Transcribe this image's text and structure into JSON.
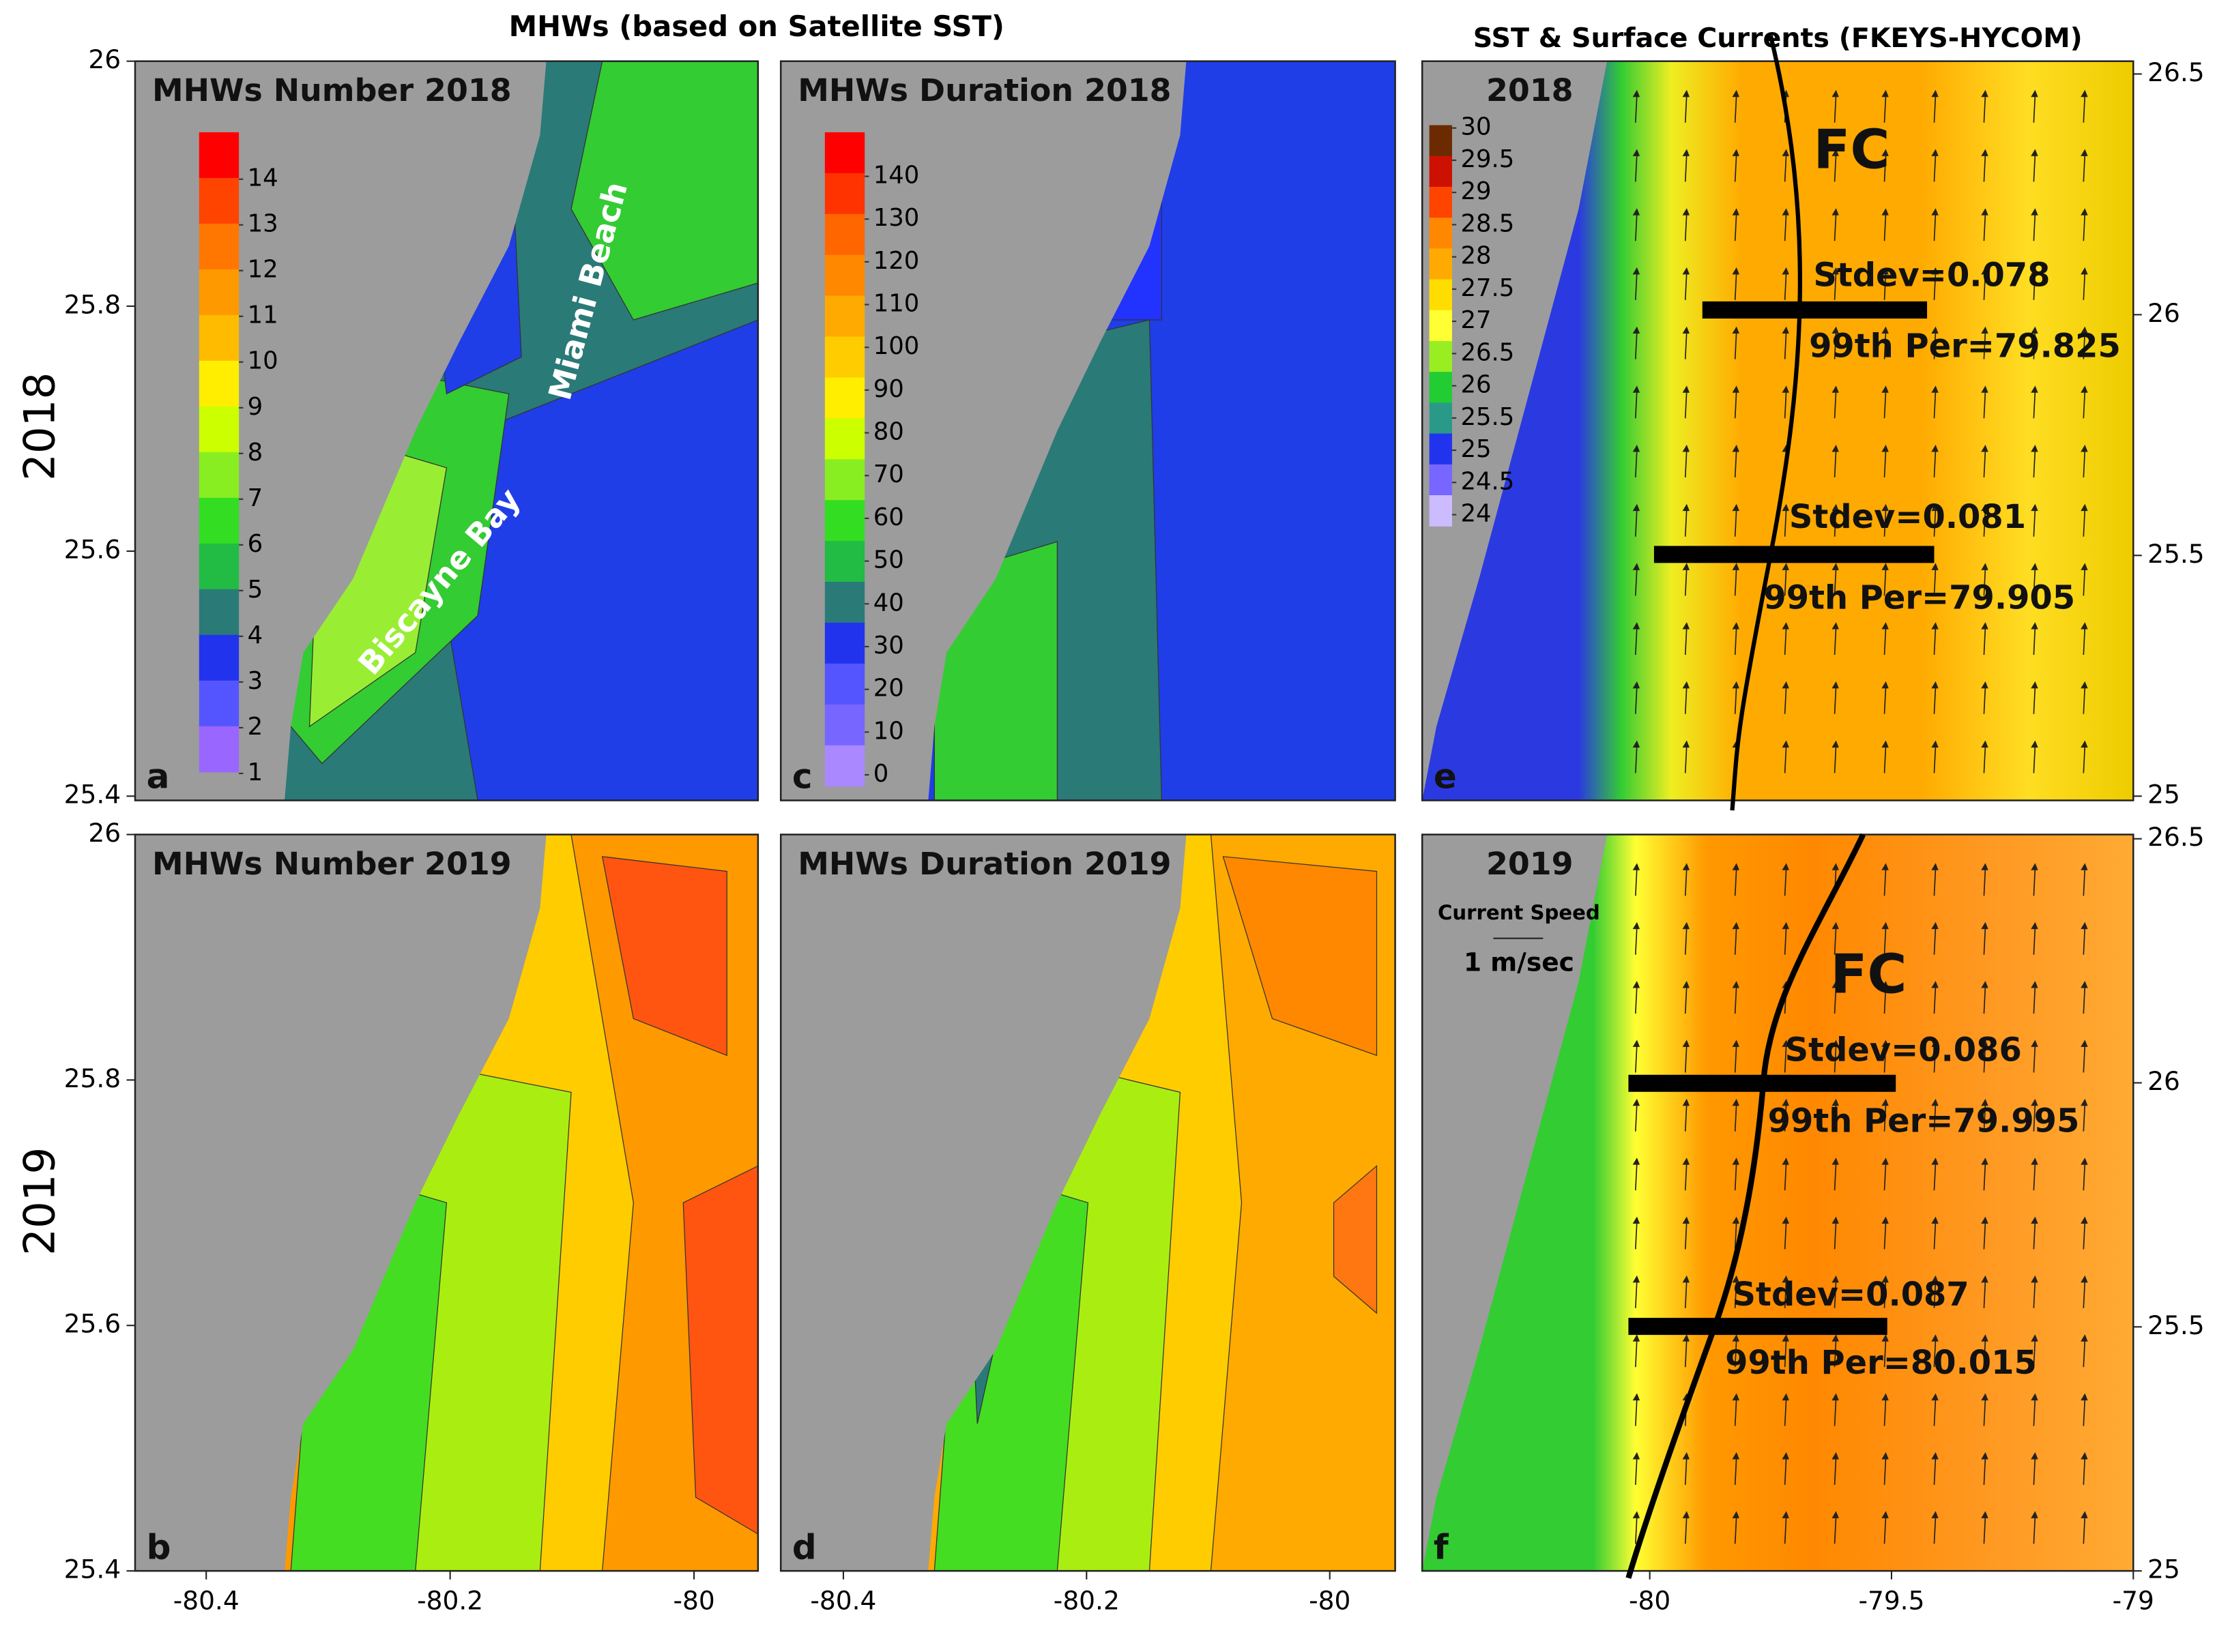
{
  "title_left": "MHWs (based on Satellite SST)",
  "title_right": "SST & Surface Currents (FKEYS-HYCOM)",
  "row_labels": [
    "2018",
    "2019"
  ],
  "lat_ticks": [
    26,
    25.8,
    25.6,
    25.4
  ],
  "lon_ticks": [
    -80.4,
    -80.2,
    -80
  ],
  "right_lat_ticks": [
    26.5,
    26,
    25.5,
    25
  ],
  "right_lon_ticks": [
    -80,
    -79.5,
    -79
  ],
  "panels": [
    {
      "letter": "a",
      "title": "MHWs Number 2018"
    },
    {
      "letter": "c",
      "title": "MHWs Duration 2018"
    },
    {
      "letter": "e",
      "title": "2018"
    },
    {
      "letter": "b",
      "title": "MHWs Number 2019"
    },
    {
      "letter": "d",
      "title": "MHWs Duration 2019"
    },
    {
      "letter": "f",
      "title": "2019"
    }
  ],
  "annotations": {
    "miami_beach": "Miami Beach",
    "biscayne_bay": "Biscayne Bay"
  },
  "current_speed": {
    "label": "Current Speed",
    "scale": "1 m/sec"
  },
  "fc_label": "FC",
  "fc_stats": [
    {
      "stdev": "Stdev=0.078",
      "per": "99th Per=79.825"
    },
    {
      "stdev": "Stdev=0.081",
      "per": "99th Per=79.905"
    },
    {
      "stdev": "Stdev=0.086",
      "per": "99th Per=79.995"
    },
    {
      "stdev": "Stdev=0.087",
      "per": "99th Per=80.015"
    }
  ],
  "colorbars": {
    "number": {
      "ticks": [
        14,
        13,
        12,
        11,
        10,
        9,
        8,
        7,
        6,
        5,
        4,
        3,
        2,
        1
      ],
      "colors": [
        "#ff0000",
        "#ff4400",
        "#ff7700",
        "#ff9900",
        "#ffbb00",
        "#ffee00",
        "#ccff00",
        "#88ee22",
        "#33dd22",
        "#22bb44",
        "#2a7a78",
        "#2233ee",
        "#5555ff",
        "#9966ff"
      ]
    },
    "duration": {
      "ticks": [
        140,
        130,
        120,
        110,
        100,
        90,
        80,
        70,
        60,
        50,
        40,
        30,
        20,
        10,
        0
      ],
      "colors": [
        "#ff0000",
        "#ff3300",
        "#ff6600",
        "#ff8800",
        "#ffaa00",
        "#ffcc00",
        "#ffee00",
        "#ccff00",
        "#88ee22",
        "#33dd22",
        "#22bb44",
        "#2a7a78",
        "#2233ee",
        "#5555ff",
        "#7766ff",
        "#aa88ff"
      ]
    },
    "sst": {
      "ticks": [
        30,
        29.5,
        29,
        28.5,
        28,
        27.5,
        27,
        26.5,
        26,
        25.5,
        25,
        24.5,
        24
      ],
      "colors": [
        "#6b2a00",
        "#cc1100",
        "#ff4400",
        "#ff8800",
        "#ffaa00",
        "#ffdd00",
        "#ffff33",
        "#99ee22",
        "#22cc33",
        "#2a9a88",
        "#2233ee",
        "#7766ff",
        "#ccbbff"
      ]
    }
  }
}
